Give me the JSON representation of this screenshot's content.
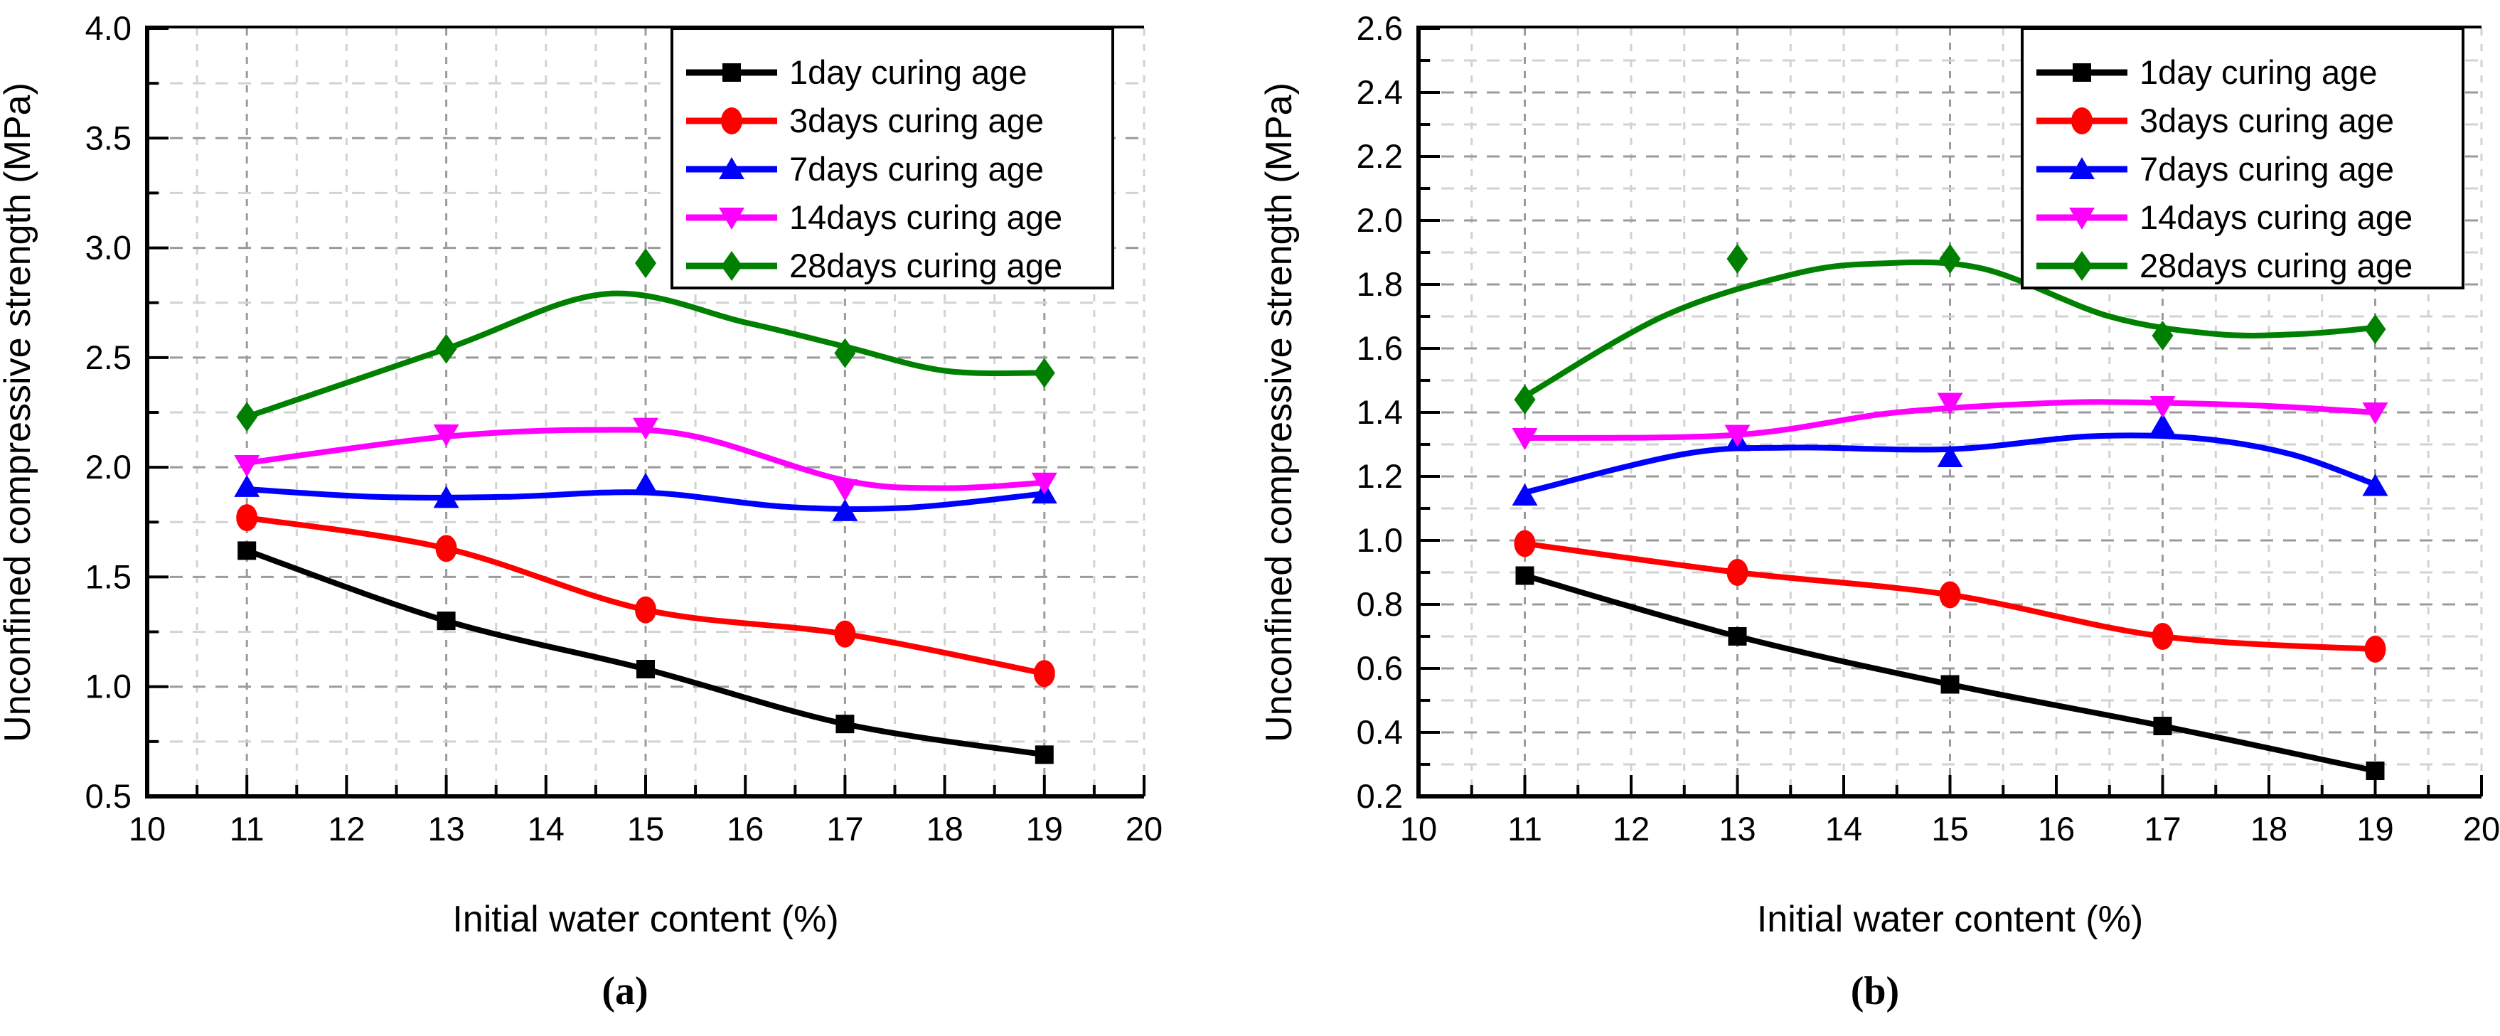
{
  "shared": {
    "x_axis_title": "Initial water content (%)",
    "y_axis_title": "Unconfined compressive strength (MPa)",
    "x_tick_labels": [
      "10",
      "11",
      "12",
      "13",
      "14",
      "15",
      "16",
      "17",
      "18",
      "19",
      "20"
    ],
    "legend_labels": [
      "1day curing age",
      "3days curing age",
      "7days curing age",
      "14days curing age",
      "28days curing age"
    ],
    "colors": {
      "series_1day": "#000000",
      "series_3days": "#ff0000",
      "series_7days": "#0000ff",
      "series_14days": "#ff00ff",
      "series_28days": "#008000",
      "grid_major": "#9b9b9b",
      "grid_minor": "#d2d2d2",
      "axis": "#000000",
      "background": "#ffffff",
      "legend_border": "#000000"
    }
  },
  "chart_data": [
    {
      "id": "a",
      "type": "line",
      "caption": "(a)",
      "xlabel": "Initial water content (%)",
      "ylabel": "Unconfined compressive strength (MPa)",
      "xlim": [
        10,
        20
      ],
      "ylim": [
        0.5,
        4.0
      ],
      "x_major_step": 1,
      "x_minor_step": 0.5,
      "y_major_step": 0.5,
      "y_minor_step": 0.25,
      "y_tick_labels": [
        "0.5",
        "1.0",
        "1.5",
        "2.0",
        "2.5",
        "3.0",
        "3.5",
        "4.0"
      ],
      "grid": true,
      "legend_position": "top-right",
      "x": [
        11,
        13,
        15,
        17,
        19
      ],
      "series": [
        {
          "name": "1day curing age",
          "color": "#000000",
          "marker": "square",
          "values": [
            1.62,
            1.3,
            1.08,
            0.83,
            0.69
          ]
        },
        {
          "name": "3days curing age",
          "color": "#ff0000",
          "marker": "circle",
          "values": [
            1.77,
            1.63,
            1.35,
            1.24,
            1.06
          ]
        },
        {
          "name": "7days curing age",
          "color": "#0000ff",
          "marker": "triangle-up",
          "values": [
            1.91,
            1.86,
            1.92,
            1.8,
            1.88
          ],
          "fit_curve": [
            [
              11,
              1.9
            ],
            [
              12.3,
              1.865
            ],
            [
              13.6,
              1.865
            ],
            [
              15,
              1.885
            ],
            [
              16.4,
              1.82
            ],
            [
              17.6,
              1.815
            ],
            [
              19,
              1.88
            ]
          ]
        },
        {
          "name": "14days curing age",
          "color": "#ff00ff",
          "marker": "triangle-down",
          "values": [
            2.01,
            2.15,
            2.18,
            1.9,
            1.93
          ],
          "fit_curve": [
            [
              11,
              2.02
            ],
            [
              13,
              2.14
            ],
            [
              14.5,
              2.17
            ],
            [
              15.5,
              2.14
            ],
            [
              17,
              1.94
            ],
            [
              18,
              1.905
            ],
            [
              19,
              1.93
            ]
          ]
        },
        {
          "name": "28days curing age",
          "color": "#008000",
          "marker": "diamond",
          "values": [
            2.23,
            2.54,
            2.93,
            2.52,
            2.43
          ],
          "fit_curve": [
            [
              11,
              2.23
            ],
            [
              13,
              2.54
            ],
            [
              14.6,
              2.79
            ],
            [
              16,
              2.66
            ],
            [
              17,
              2.55
            ],
            [
              18,
              2.44
            ],
            [
              19,
              2.43
            ]
          ]
        }
      ]
    },
    {
      "id": "b",
      "type": "line",
      "caption": "(b)",
      "xlabel": "Initial water content (%)",
      "ylabel": "Unconfined compressive strength (MPa)",
      "xlim": [
        10,
        20
      ],
      "ylim": [
        0.2,
        2.6
      ],
      "x_major_step": 1,
      "x_minor_step": 0.5,
      "y_major_step": 0.2,
      "y_minor_step": 0.1,
      "y_tick_labels": [
        "0.2",
        "0.4",
        "0.6",
        "0.8",
        "1.0",
        "1.2",
        "1.4",
        "1.6",
        "1.8",
        "2.0",
        "2.2",
        "2.4",
        "2.6"
      ],
      "grid": true,
      "legend_position": "top-right",
      "x": [
        11,
        13,
        15,
        17,
        19
      ],
      "series": [
        {
          "name": "1day curing age",
          "color": "#000000",
          "marker": "square",
          "values": [
            0.89,
            0.7,
            0.55,
            0.42,
            0.28
          ]
        },
        {
          "name": "3days curing age",
          "color": "#ff0000",
          "marker": "circle",
          "values": [
            0.99,
            0.9,
            0.83,
            0.7,
            0.66
          ]
        },
        {
          "name": "7days curing age",
          "color": "#0000ff",
          "marker": "triangle-up",
          "values": [
            1.14,
            1.31,
            1.26,
            1.36,
            1.17
          ],
          "fit_curve": [
            [
              11,
              1.15
            ],
            [
              12.5,
              1.27
            ],
            [
              13.5,
              1.29
            ],
            [
              15,
              1.285
            ],
            [
              16.3,
              1.325
            ],
            [
              17.3,
              1.32
            ],
            [
              18.2,
              1.27
            ],
            [
              19,
              1.175
            ]
          ]
        },
        {
          "name": "14days curing age",
          "color": "#ff00ff",
          "marker": "triangle-down",
          "values": [
            1.32,
            1.33,
            1.43,
            1.42,
            1.4
          ],
          "fit_curve": [
            [
              11,
              1.32
            ],
            [
              13,
              1.33
            ],
            [
              14.5,
              1.4
            ],
            [
              16,
              1.43
            ],
            [
              17,
              1.43
            ],
            [
              18,
              1.42
            ],
            [
              19,
              1.4
            ]
          ]
        },
        {
          "name": "28days curing age",
          "color": "#008000",
          "marker": "diamond",
          "values": [
            1.44,
            1.88,
            1.88,
            1.64,
            1.66
          ],
          "fit_curve": [
            [
              11,
              1.45
            ],
            [
              12.3,
              1.7
            ],
            [
              13.5,
              1.83
            ],
            [
              14.3,
              1.865
            ],
            [
              15.3,
              1.85
            ],
            [
              16.5,
              1.7
            ],
            [
              17.5,
              1.645
            ],
            [
              18.3,
              1.645
            ],
            [
              19,
              1.665
            ]
          ]
        }
      ]
    }
  ]
}
